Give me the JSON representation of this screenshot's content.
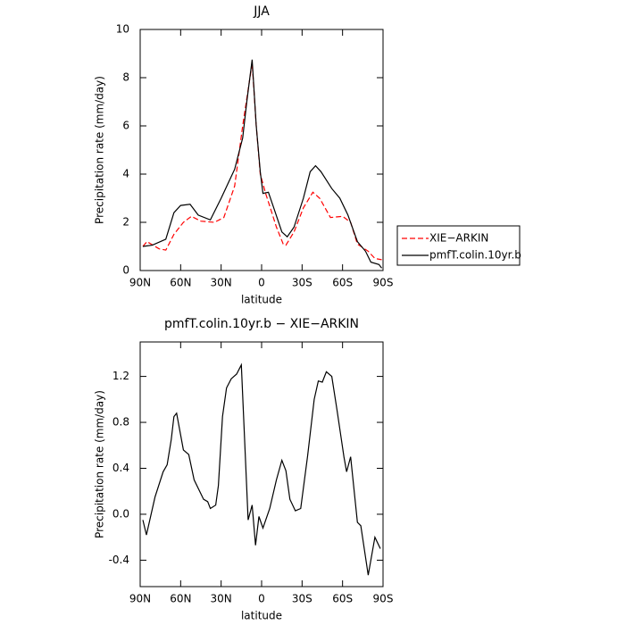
{
  "chart_data": [
    {
      "type": "line",
      "title": "JJA",
      "xlabel": "latitude",
      "ylabel": "Precipitation rate (mm/day)",
      "xlim": [
        90,
        -90
      ],
      "xticks": [
        {
          "value": 90,
          "label": "90N"
        },
        {
          "value": 60,
          "label": "60N"
        },
        {
          "value": 30,
          "label": "30N"
        },
        0,
        {
          "value": -30,
          "label": "30S"
        },
        {
          "value": -60,
          "label": "60S"
        },
        {
          "value": -90,
          "label": "90S"
        }
      ],
      "ylim": [
        0,
        10
      ],
      "yticks": [
        0,
        2,
        4,
        6,
        8,
        10
      ],
      "series": [
        {
          "name": "XIE−ARKIN",
          "color": "#ff0000",
          "dash": true,
          "x": [
            88,
            85,
            76,
            71,
            65,
            58,
            52,
            45,
            35,
            28,
            20,
            14,
            7,
            4,
            1,
            -3,
            -7,
            -11,
            -16,
            -18,
            -24,
            -31,
            -38,
            -43,
            -51,
            -60,
            -66,
            -71,
            -79,
            -84,
            -89
          ],
          "values": [
            1.0,
            1.2,
            0.9,
            0.85,
            1.5,
            2.0,
            2.25,
            2.05,
            2.0,
            2.2,
            3.5,
            6.0,
            8.6,
            6.0,
            4.0,
            3.2,
            2.5,
            1.8,
            1.1,
            1.05,
            1.6,
            2.6,
            3.25,
            3.0,
            2.2,
            2.25,
            2.0,
            1.1,
            0.8,
            0.5,
            0.45
          ]
        },
        {
          "name": "pmfT.colin.10yr.b",
          "color": "#000000",
          "dash": false,
          "x": [
            88,
            81,
            71,
            65,
            60,
            53,
            47,
            38,
            30,
            20,
            14,
            11,
            7,
            4,
            1,
            -1,
            -5,
            -9,
            -15,
            -19,
            -24,
            -31,
            -36,
            -40,
            -44,
            -52,
            -58,
            -64,
            -71,
            -77,
            -81,
            -87,
            -89
          ],
          "values": [
            1.0,
            1.05,
            1.3,
            2.4,
            2.7,
            2.75,
            2.3,
            2.1,
            3.0,
            4.2,
            5.5,
            7.0,
            8.75,
            6.0,
            4.1,
            3.2,
            3.25,
            2.6,
            1.6,
            1.4,
            1.8,
            3.0,
            4.1,
            4.35,
            4.1,
            3.4,
            3.0,
            2.3,
            1.2,
            0.8,
            0.35,
            0.25,
            0.1
          ]
        }
      ]
    },
    {
      "type": "line",
      "title": "pmfT.colin.10yr.b − XIE−ARKIN",
      "xlabel": "latitude",
      "ylabel": "Precipitation rate (mm/day)",
      "xlim": [
        90,
        -90
      ],
      "xticks": [
        {
          "value": 90,
          "label": "90N"
        },
        {
          "value": 60,
          "label": "60N"
        },
        {
          "value": 30,
          "label": "30N"
        },
        0,
        {
          "value": -30,
          "label": "30S"
        },
        {
          "value": -60,
          "label": "60S"
        },
        {
          "value": -90,
          "label": "90S"
        }
      ],
      "ylim": [
        -0.63,
        1.5
      ],
      "yticks": [
        -0.4,
        {
          "value": 0,
          "label": "0.0"
        },
        0.4,
        0.8,
        1.2
      ],
      "series": [
        {
          "color": "#000000",
          "dash": false,
          "x": [
            88,
            85.4,
            79,
            73,
            70,
            67,
            65,
            63,
            58,
            54,
            50,
            43,
            40,
            38,
            34,
            32,
            29,
            26,
            22.5,
            18.5,
            15,
            10,
            7,
            4.5,
            2,
            -1,
            -6,
            -11,
            -15,
            -18,
            -21,
            -25,
            -29,
            -34,
            -39,
            -42,
            -45,
            -48,
            -52,
            -56,
            -61,
            -63,
            -66,
            -71,
            -73.5,
            -79,
            -84,
            -88
          ],
          "values": [
            -0.05,
            -0.18,
            0.15,
            0.37,
            0.43,
            0.65,
            0.85,
            0.88,
            0.56,
            0.52,
            0.3,
            0.13,
            0.11,
            0.05,
            0.08,
            0.25,
            0.85,
            1.1,
            1.18,
            1.22,
            1.3,
            -0.05,
            0.08,
            -0.27,
            -0.02,
            -0.12,
            0.05,
            0.3,
            0.47,
            0.38,
            0.13,
            0.03,
            0.05,
            0.5,
            1.0,
            1.16,
            1.15,
            1.24,
            1.2,
            0.9,
            0.5,
            0.37,
            0.5,
            -0.07,
            -0.1,
            -0.53,
            -0.2,
            -0.3
          ]
        }
      ]
    }
  ]
}
